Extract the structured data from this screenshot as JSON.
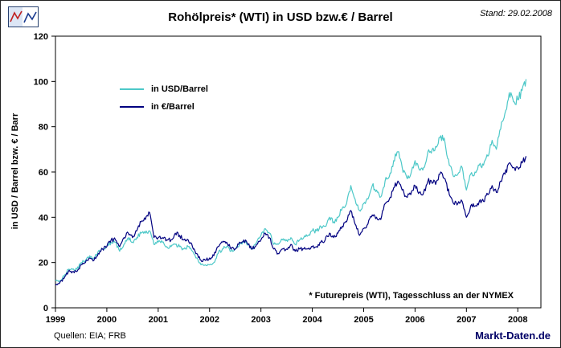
{
  "header": {
    "title": "Rohölpreis* (WTI) in USD bzw.€ / Barrel",
    "stand": "Stand: 29.02.2008"
  },
  "footer": {
    "sources": "Quellen: EIA; FRB",
    "site": "Markt-Daten.de"
  },
  "chart_data": {
    "type": "line",
    "title": "Rohölpreis* (WTI) in USD bzw.€ / Barrel",
    "ylabel": "in USD / Barrel bzw. € / Barr",
    "footnote": "* Futurepreis (WTI), Tagesschluss an der NYMEX",
    "grid": false,
    "legend_position": "upper-left-inside",
    "ylim": [
      0,
      120
    ],
    "yticks": [
      0,
      20,
      40,
      60,
      80,
      100,
      120
    ],
    "xlim": [
      1999,
      2008.45
    ],
    "xticks": [
      1999,
      2000,
      2001,
      2002,
      2003,
      2004,
      2005,
      2006,
      2007,
      2008
    ],
    "x": [
      1999.0,
      1999.083,
      1999.167,
      1999.25,
      1999.333,
      1999.417,
      1999.5,
      1999.583,
      1999.667,
      1999.75,
      1999.833,
      1999.917,
      2000.0,
      2000.083,
      2000.167,
      2000.25,
      2000.333,
      2000.417,
      2000.5,
      2000.583,
      2000.667,
      2000.75,
      2000.833,
      2000.917,
      2001.0,
      2001.083,
      2001.167,
      2001.25,
      2001.333,
      2001.417,
      2001.5,
      2001.583,
      2001.667,
      2001.75,
      2001.833,
      2001.917,
      2002.0,
      2002.083,
      2002.167,
      2002.25,
      2002.333,
      2002.417,
      2002.5,
      2002.583,
      2002.667,
      2002.75,
      2002.833,
      2002.917,
      2003.0,
      2003.083,
      2003.167,
      2003.25,
      2003.333,
      2003.417,
      2003.5,
      2003.583,
      2003.667,
      2003.75,
      2003.833,
      2003.917,
      2004.0,
      2004.083,
      2004.167,
      2004.25,
      2004.333,
      2004.417,
      2004.5,
      2004.583,
      2004.667,
      2004.75,
      2004.833,
      2004.917,
      2005.0,
      2005.083,
      2005.167,
      2005.25,
      2005.333,
      2005.417,
      2005.5,
      2005.583,
      2005.667,
      2005.75,
      2005.833,
      2005.917,
      2006.0,
      2006.083,
      2006.167,
      2006.25,
      2006.333,
      2006.417,
      2006.5,
      2006.583,
      2006.667,
      2006.75,
      2006.833,
      2006.917,
      2007.0,
      2007.083,
      2007.167,
      2007.25,
      2007.333,
      2007.417,
      2007.5,
      2007.583,
      2007.667,
      2007.75,
      2007.833,
      2007.917,
      2008.0,
      2008.083,
      2008.16
    ],
    "series": [
      {
        "name": "in USD/Barrel",
        "color": "#4dc8c8",
        "values": [
          12,
          12,
          14,
          17,
          17,
          17,
          20,
          21,
          23,
          22,
          25,
          26,
          27,
          29,
          29,
          25,
          28,
          31,
          29,
          31,
          33,
          33,
          34,
          28,
          29,
          29,
          27,
          27,
          28,
          27,
          26,
          27,
          25,
          22,
          19,
          19,
          19,
          20,
          24,
          26,
          27,
          25,
          26,
          28,
          29,
          28,
          26,
          29,
          32,
          35,
          33,
          28,
          28,
          30,
          30,
          31,
          28,
          30,
          31,
          32,
          34,
          34,
          36,
          36,
          40,
          38,
          40,
          44,
          46,
          54,
          48,
          43,
          46,
          48,
          54,
          52,
          49,
          56,
          58,
          65,
          69,
          62,
          58,
          59,
          65,
          61,
          62,
          69,
          70,
          71,
          76,
          73,
          63,
          58,
          59,
          62,
          52,
          59,
          60,
          63,
          63,
          67,
          74,
          70,
          79,
          86,
          95,
          91,
          92,
          96,
          101
        ]
      },
      {
        "name": "in €/Barrel",
        "color": "#000080",
        "values": [
          10,
          11,
          13,
          16,
          16,
          16,
          19,
          20,
          22,
          21,
          24,
          26,
          27,
          30,
          30,
          27,
          31,
          33,
          31,
          34,
          38,
          39,
          42,
          31,
          31,
          31,
          30,
          30,
          33,
          32,
          30,
          30,
          27,
          24,
          21,
          21,
          22,
          23,
          27,
          29,
          29,
          26,
          26,
          29,
          30,
          28,
          26,
          28,
          30,
          33,
          31,
          26,
          24,
          26,
          26,
          28,
          25,
          26,
          26,
          26,
          27,
          27,
          29,
          30,
          33,
          31,
          33,
          36,
          38,
          43,
          37,
          32,
          35,
          37,
          41,
          40,
          39,
          46,
          48,
          53,
          56,
          52,
          49,
          50,
          54,
          51,
          51,
          56,
          55,
          56,
          60,
          57,
          50,
          46,
          46,
          47,
          40,
          45,
          45,
          47,
          47,
          50,
          54,
          51,
          56,
          59,
          64,
          62,
          62,
          64,
          67
        ]
      }
    ]
  }
}
